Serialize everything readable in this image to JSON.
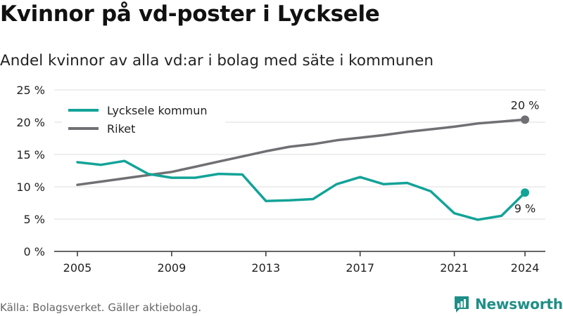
{
  "title": "Kvinnor på vd-poster i Lycksele",
  "subtitle": "Andel kvinnor av alla vd:ar i bolag med säte i kommunen",
  "source": "Källa: Bolagsverket. Gäller aktiebolag.",
  "brand": {
    "name": "Newsworthy",
    "icon": "newsworthy-logo-icon"
  },
  "colors": {
    "teal": "#13a398",
    "gray": "#707074",
    "grid": "#dcdcdc",
    "axis": "#333333"
  },
  "chart_data": {
    "type": "line",
    "x": [
      2005,
      2006,
      2007,
      2008,
      2009,
      2010,
      2011,
      2012,
      2013,
      2014,
      2015,
      2016,
      2017,
      2018,
      2019,
      2020,
      2021,
      2022,
      2023,
      2024
    ],
    "xticks": [
      2005,
      2009,
      2013,
      2017,
      2021,
      2024
    ],
    "xtick_labels": [
      "2005",
      "2009",
      "2013",
      "2017",
      "2021",
      "2024"
    ],
    "xlim": [
      2005,
      2024
    ],
    "ylim": [
      0,
      25
    ],
    "yticks": [
      0,
      5,
      10,
      15,
      20,
      25
    ],
    "ytick_labels": [
      "0 %",
      "5 %",
      "10 %",
      "15 %",
      "20 %",
      "25 %"
    ],
    "grid": true,
    "legend_position": "top-left",
    "series": [
      {
        "name": "Lycksele kommun",
        "color": "#13a398",
        "values": [
          13.8,
          13.4,
          14.0,
          12.0,
          11.4,
          11.4,
          12.0,
          11.9,
          7.8,
          7.9,
          8.1,
          10.4,
          11.5,
          10.4,
          10.6,
          9.3,
          5.9,
          4.9,
          5.5,
          9.1
        ],
        "end_label": "9 %"
      },
      {
        "name": "Riket",
        "color": "#707074",
        "values": [
          10.3,
          10.8,
          11.3,
          11.8,
          12.3,
          13.1,
          13.9,
          14.7,
          15.5,
          16.2,
          16.6,
          17.2,
          17.6,
          18.0,
          18.5,
          18.9,
          19.3,
          19.8,
          20.1,
          20.4
        ],
        "end_label": "20 %"
      }
    ]
  }
}
